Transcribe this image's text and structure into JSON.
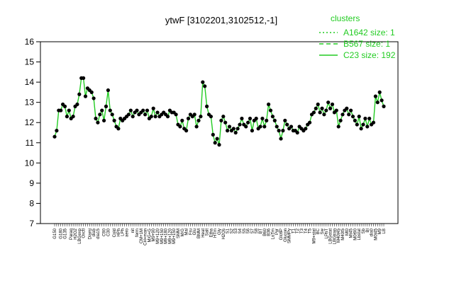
{
  "chart_data": {
    "type": "line",
    "title": "ytwF [3102201,3102512,-1]",
    "xlabel": "",
    "ylabel": "",
    "ylim": [
      7,
      16
    ],
    "yticks": [
      7,
      8,
      9,
      10,
      11,
      12,
      13,
      14,
      15,
      16
    ],
    "grid": false,
    "legend": {
      "title": "clusters",
      "placement": "top-right",
      "entries": [
        {
          "label": "A1642 size: 1",
          "style": "dotted"
        },
        {
          "label": "B567 size: 1",
          "style": "dashed"
        },
        {
          "label": "C23 size: 192",
          "style": "solid"
        }
      ]
    },
    "colors": {
      "series": "#22cc22",
      "points": "#000000"
    },
    "series": [
      {
        "name": "C23 size: 192",
        "values": [
          11.3,
          11.6,
          12.6,
          12.6,
          12.9,
          12.8,
          12.3,
          12.6,
          12.2,
          12.3,
          12.8,
          12.9,
          13.4,
          14.2,
          14.2,
          13.3,
          13.7,
          13.6,
          13.5,
          13.2,
          12.2,
          12.0,
          12.4,
          12.6,
          12.1,
          12.8,
          13.6,
          12.6,
          12.4,
          12.1,
          11.8,
          11.7,
          12.2,
          12.1,
          12.2,
          12.3,
          12.4,
          12.6,
          12.3,
          12.5,
          12.6,
          12.4,
          12.5,
          12.6,
          12.4,
          12.6,
          12.2,
          12.3,
          12.7,
          12.3,
          12.5,
          12.3,
          12.4,
          12.5,
          12.4,
          12.3,
          12.6,
          12.5,
          12.5,
          12.4,
          11.9,
          11.8,
          12.1,
          11.7,
          11.6,
          12.2,
          12.4,
          12.3,
          12.4,
          11.8,
          12.1,
          12.3,
          14.0,
          13.8,
          12.8,
          12.4,
          12.3,
          11.4,
          11.0,
          11.2,
          10.9,
          12.1,
          12.3,
          12.0,
          11.6,
          11.8,
          11.6,
          11.7,
          11.5,
          11.7,
          11.9,
          12.2,
          11.9,
          11.8,
          12.0,
          12.2,
          11.6,
          12.1,
          12.2,
          11.7,
          11.8,
          12.2,
          11.8,
          12.1,
          12.9,
          12.6,
          12.3,
          12.1,
          11.8,
          11.6,
          11.2,
          11.6,
          12.1,
          11.9,
          11.7,
          11.8,
          11.6,
          11.6,
          11.5,
          11.8,
          11.7,
          11.6,
          11.7,
          11.9,
          12.0,
          12.4,
          12.5,
          12.7,
          12.9,
          12.5,
          12.7,
          12.4,
          12.6,
          13.0,
          12.7,
          12.9,
          12.5,
          12.6,
          11.8,
          12.1,
          12.4,
          12.6,
          12.7,
          12.4,
          12.6,
          12.3,
          12.1,
          11.9,
          12.3,
          11.7,
          11.9,
          12.2,
          11.8,
          12.2,
          11.9,
          12.0,
          13.3,
          13.0,
          13.5,
          13.1,
          12.8
        ]
      }
    ],
    "category_labels": [
      {
        "i": 0,
        "text": "G150"
      },
      {
        "i": 3,
        "text": "G180"
      },
      {
        "i": 5,
        "text": "G135"
      },
      {
        "i": 8,
        "text": "Paraq"
      },
      {
        "i": 10,
        "text": "H2O2"
      },
      {
        "i": 12,
        "text": "LBGexp"
      },
      {
        "i": 14,
        "text": "Oxctl"
      },
      {
        "i": 17,
        "text": "Diami"
      },
      {
        "i": 19,
        "text": "dia5"
      },
      {
        "i": 21,
        "text": "dia15"
      },
      {
        "i": 24,
        "text": "C90"
      },
      {
        "i": 26,
        "text": "C30"
      },
      {
        "i": 29,
        "text": "Cold"
      },
      {
        "i": 31,
        "text": "HPh"
      },
      {
        "i": 33,
        "text": "LPh"
      },
      {
        "i": 35,
        "text": "aero"
      },
      {
        "i": 38,
        "text": "nit"
      },
      {
        "i": 40,
        "text": "ferm"
      },
      {
        "i": 42,
        "text": "CM+1M"
      },
      {
        "i": 44,
        "text": "CH+man"
      },
      {
        "i": 46,
        "text": "M/G+G"
      },
      {
        "i": 48,
        "text": "M9+90"
      },
      {
        "i": 50,
        "text": "M9+120"
      },
      {
        "i": 52,
        "text": "M9+150"
      },
      {
        "i": 54,
        "text": "M9+180"
      },
      {
        "i": 56,
        "text": "M9+120"
      },
      {
        "i": 58,
        "text": "M9+150"
      },
      {
        "i": 60,
        "text": "SMM"
      },
      {
        "i": 62,
        "text": "M/G"
      },
      {
        "i": 64,
        "text": "Mal"
      },
      {
        "i": 66,
        "text": "Fru"
      },
      {
        "i": 68,
        "text": "Glu"
      },
      {
        "i": 70,
        "text": "BMM"
      },
      {
        "i": 72,
        "text": "Heat"
      },
      {
        "i": 74,
        "text": "Salt"
      },
      {
        "i": 76,
        "text": "Etha"
      },
      {
        "i": 78,
        "text": "HTm"
      },
      {
        "i": 80,
        "text": "Gly"
      },
      {
        "i": 82,
        "text": "H2Os"
      },
      {
        "i": 84,
        "text": "S1"
      },
      {
        "i": 86,
        "text": "S2"
      },
      {
        "i": 88,
        "text": "S3"
      },
      {
        "i": 90,
        "text": "S4"
      },
      {
        "i": 92,
        "text": "S5"
      },
      {
        "i": 94,
        "text": "S6"
      },
      {
        "i": 96,
        "text": "S7"
      },
      {
        "i": 98,
        "text": "S8"
      },
      {
        "i": 100,
        "text": "BT"
      },
      {
        "i": 102,
        "text": "B60"
      },
      {
        "i": 104,
        "text": "B36"
      },
      {
        "i": 106,
        "text": "LoTm"
      },
      {
        "i": 108,
        "text": "Pyr"
      },
      {
        "i": 110,
        "text": "Glc6P"
      },
      {
        "i": 112,
        "text": "Glucon"
      },
      {
        "i": 114,
        "text": "SMMPy"
      },
      {
        "i": 116,
        "text": "T1"
      },
      {
        "i": 118,
        "text": "T2"
      },
      {
        "i": 120,
        "text": "T3"
      },
      {
        "i": 122,
        "text": "T4"
      },
      {
        "i": 124,
        "text": "T5"
      },
      {
        "i": 126,
        "text": "M9+stat"
      },
      {
        "i": 128,
        "text": "BC"
      },
      {
        "i": 130,
        "text": "Sw"
      },
      {
        "i": 132,
        "text": "LPhT"
      },
      {
        "i": 134,
        "text": "LBGstat"
      },
      {
        "i": 136,
        "text": "LBGtran"
      },
      {
        "i": 138,
        "text": "M40t45"
      },
      {
        "i": 140,
        "text": "M40t5"
      },
      {
        "i": 142,
        "text": "Mt0"
      },
      {
        "i": 144,
        "text": "Mt45"
      },
      {
        "i": 146,
        "text": "M0t90"
      },
      {
        "i": 148,
        "text": "Lbstat"
      },
      {
        "i": 150,
        "text": "Sb"
      },
      {
        "i": 152,
        "text": "BI"
      },
      {
        "i": 154,
        "text": "dia0"
      },
      {
        "i": 156,
        "text": "M0t45"
      },
      {
        "i": 158,
        "text": "M9"
      },
      {
        "i": 160,
        "text": "LB"
      }
    ]
  }
}
